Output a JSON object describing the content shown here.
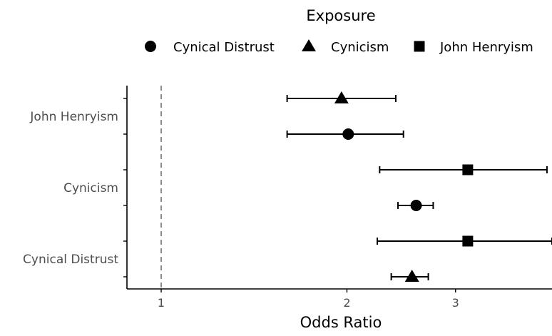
{
  "chart_data": {
    "type": "scatter",
    "title": "",
    "xlabel": "Odds Ratio",
    "ylabel": "",
    "x_scale": "log",
    "xlim": [
      0.88,
      4.3
    ],
    "x_ticks": [
      1,
      2,
      3
    ],
    "x_tick_labels": [
      "1",
      "2",
      "3"
    ],
    "reference_line": 1,
    "grid": false,
    "legend": {
      "title": "Exposure",
      "placement": "top",
      "entries": [
        {
          "label": "Cynical Distrust",
          "shape": "circle"
        },
        {
          "label": "Cynicism",
          "shape": "triangle"
        },
        {
          "label": "John Henryism",
          "shape": "square"
        }
      ]
    },
    "categories": [
      "John Henryism",
      "Cynicism",
      "Cynical Distrust"
    ],
    "points": [
      {
        "category": "John Henryism",
        "series": "Cynicism",
        "or": 1.96,
        "lower": 1.6,
        "upper": 2.4
      },
      {
        "category": "John Henryism",
        "series": "Cynical Distrust",
        "or": 2.01,
        "lower": 1.6,
        "upper": 2.47
      },
      {
        "category": "Cynicism",
        "series": "John Henryism",
        "or": 3.14,
        "lower": 2.26,
        "upper": 4.22
      },
      {
        "category": "Cynicism",
        "series": "Cynical Distrust",
        "or": 2.59,
        "lower": 2.42,
        "upper": 2.76
      },
      {
        "category": "Cynical Distrust",
        "series": "John Henryism",
        "or": 3.14,
        "lower": 2.24,
        "upper": 4.3
      },
      {
        "category": "Cynical Distrust",
        "series": "Cynicism",
        "or": 2.55,
        "lower": 2.36,
        "upper": 2.71
      }
    ]
  }
}
